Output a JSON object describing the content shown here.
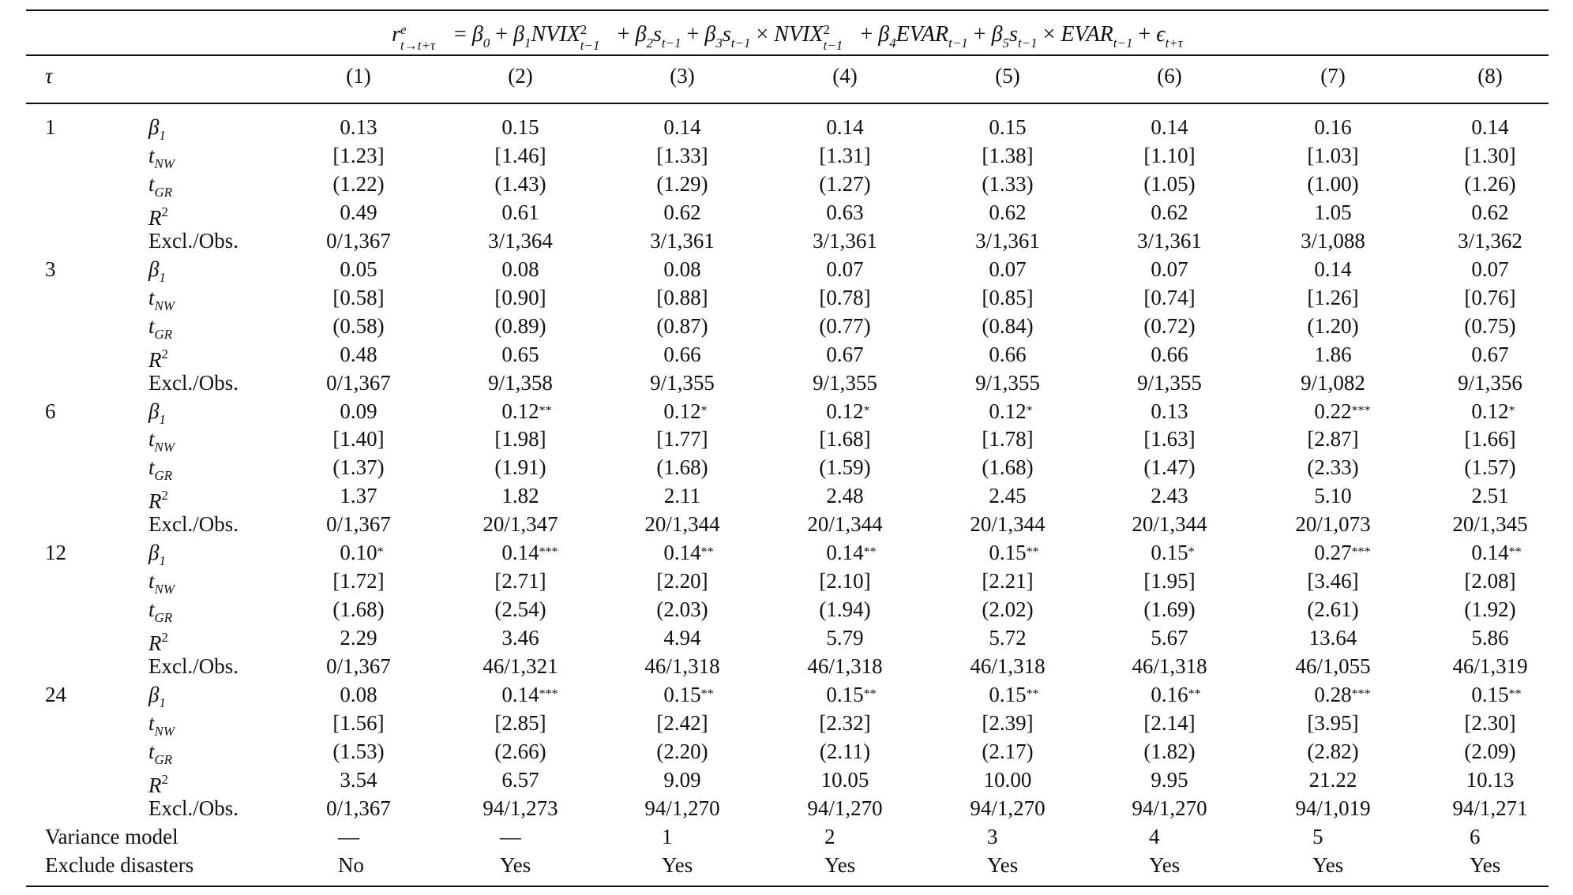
{
  "equation": {
    "lhs": "r",
    "lhs_sup": "e",
    "lhs_sub": "t→t+τ",
    "rhs_terms": [
      {
        "t": "= "
      },
      {
        "i": "β"
      },
      {
        "s": "0"
      },
      {
        "t": " + "
      },
      {
        "i": "β"
      },
      {
        "s": "1"
      },
      {
        "i": "NVIX"
      },
      {
        "st": "2",
        "sb": "t−1"
      },
      {
        "t": " + "
      },
      {
        "i": "β"
      },
      {
        "s": "2"
      },
      {
        "i": "s"
      },
      {
        "s": "t−1"
      },
      {
        "t": " + "
      },
      {
        "i": "β"
      },
      {
        "s": "3"
      },
      {
        "i": "s"
      },
      {
        "s": "t−1"
      },
      {
        "t": " × "
      },
      {
        "i": "NVIX"
      },
      {
        "st": "2",
        "sb": "t−1"
      },
      {
        "t": " + "
      },
      {
        "i": "β"
      },
      {
        "s": "4"
      },
      {
        "i": "EVAR"
      },
      {
        "s": "t−1"
      },
      {
        "t": " + "
      },
      {
        "i": "β"
      },
      {
        "s": "5"
      },
      {
        "i": "s"
      },
      {
        "s": "t−1"
      },
      {
        "t": " × "
      },
      {
        "i": "EVAR"
      },
      {
        "s": "t−1"
      },
      {
        "t": " + "
      },
      {
        "i": "ϵ"
      },
      {
        "s": "t+τ"
      }
    ]
  },
  "header": {
    "tau_label": "τ",
    "columns": [
      "(1)",
      "(2)",
      "(3)",
      "(4)",
      "(5)",
      "(6)",
      "(7)",
      "(8)"
    ]
  },
  "stat_labels": [
    {
      "base": "β",
      "sub": "1",
      "sup": ""
    },
    {
      "base": "t",
      "sub": "NW",
      "sup": ""
    },
    {
      "base": "t",
      "sub": "GR",
      "sup": ""
    },
    {
      "base": "R",
      "sub": "",
      "sup": "2"
    },
    {
      "plain": "Excl./Obs."
    }
  ],
  "blocks": [
    {
      "tau": "1",
      "rows": [
        [
          [
            "0.13",
            ""
          ],
          [
            "0.15",
            ""
          ],
          [
            "0.14",
            ""
          ],
          [
            "0.14",
            ""
          ],
          [
            "0.15",
            ""
          ],
          [
            "0.14",
            ""
          ],
          [
            "0.16",
            ""
          ],
          [
            "0.14",
            ""
          ]
        ],
        [
          [
            "[1.23]",
            ""
          ],
          [
            "[1.46]",
            ""
          ],
          [
            "[1.33]",
            ""
          ],
          [
            "[1.31]",
            ""
          ],
          [
            "[1.38]",
            ""
          ],
          [
            "[1.10]",
            ""
          ],
          [
            "[1.03]",
            ""
          ],
          [
            "[1.30]",
            ""
          ]
        ],
        [
          [
            "(1.22)",
            ""
          ],
          [
            "(1.43)",
            ""
          ],
          [
            "(1.29)",
            ""
          ],
          [
            "(1.27)",
            ""
          ],
          [
            "(1.33)",
            ""
          ],
          [
            "(1.05)",
            ""
          ],
          [
            "(1.00)",
            ""
          ],
          [
            "(1.26)",
            ""
          ]
        ],
        [
          [
            "0.49",
            ""
          ],
          [
            "0.61",
            ""
          ],
          [
            "0.62",
            ""
          ],
          [
            "0.63",
            ""
          ],
          [
            "0.62",
            ""
          ],
          [
            "0.62",
            ""
          ],
          [
            "1.05",
            ""
          ],
          [
            "0.62",
            ""
          ]
        ],
        [
          [
            "0/1,367",
            ""
          ],
          [
            "3/1,364",
            ""
          ],
          [
            "3/1,361",
            ""
          ],
          [
            "3/1,361",
            ""
          ],
          [
            "3/1,361",
            ""
          ],
          [
            "3/1,361",
            ""
          ],
          [
            "3/1,088",
            ""
          ],
          [
            "3/1,362",
            ""
          ]
        ]
      ]
    },
    {
      "tau": "3",
      "rows": [
        [
          [
            "0.05",
            ""
          ],
          [
            "0.08",
            ""
          ],
          [
            "0.08",
            ""
          ],
          [
            "0.07",
            ""
          ],
          [
            "0.07",
            ""
          ],
          [
            "0.07",
            ""
          ],
          [
            "0.14",
            ""
          ],
          [
            "0.07",
            ""
          ]
        ],
        [
          [
            "[0.58]",
            ""
          ],
          [
            "[0.90]",
            ""
          ],
          [
            "[0.88]",
            ""
          ],
          [
            "[0.78]",
            ""
          ],
          [
            "[0.85]",
            ""
          ],
          [
            "[0.74]",
            ""
          ],
          [
            "[1.26]",
            ""
          ],
          [
            "[0.76]",
            ""
          ]
        ],
        [
          [
            "(0.58)",
            ""
          ],
          [
            "(0.89)",
            ""
          ],
          [
            "(0.87)",
            ""
          ],
          [
            "(0.77)",
            ""
          ],
          [
            "(0.84)",
            ""
          ],
          [
            "(0.72)",
            ""
          ],
          [
            "(1.20)",
            ""
          ],
          [
            "(0.75)",
            ""
          ]
        ],
        [
          [
            "0.48",
            ""
          ],
          [
            "0.65",
            ""
          ],
          [
            "0.66",
            ""
          ],
          [
            "0.67",
            ""
          ],
          [
            "0.66",
            ""
          ],
          [
            "0.66",
            ""
          ],
          [
            "1.86",
            ""
          ],
          [
            "0.67",
            ""
          ]
        ],
        [
          [
            "0/1,367",
            ""
          ],
          [
            "9/1,358",
            ""
          ],
          [
            "9/1,355",
            ""
          ],
          [
            "9/1,355",
            ""
          ],
          [
            "9/1,355",
            ""
          ],
          [
            "9/1,355",
            ""
          ],
          [
            "9/1,082",
            ""
          ],
          [
            "9/1,356",
            ""
          ]
        ]
      ]
    },
    {
      "tau": "6",
      "rows": [
        [
          [
            "0.09",
            ""
          ],
          [
            "0.12",
            "**"
          ],
          [
            "0.12",
            "*"
          ],
          [
            "0.12",
            "*"
          ],
          [
            "0.12",
            "*"
          ],
          [
            "0.13",
            ""
          ],
          [
            "0.22",
            "***"
          ],
          [
            "0.12",
            "*"
          ]
        ],
        [
          [
            "[1.40]",
            ""
          ],
          [
            "[1.98]",
            ""
          ],
          [
            "[1.77]",
            ""
          ],
          [
            "[1.68]",
            ""
          ],
          [
            "[1.78]",
            ""
          ],
          [
            "[1.63]",
            ""
          ],
          [
            "[2.87]",
            ""
          ],
          [
            "[1.66]",
            ""
          ]
        ],
        [
          [
            "(1.37)",
            ""
          ],
          [
            "(1.91)",
            ""
          ],
          [
            "(1.68)",
            ""
          ],
          [
            "(1.59)",
            ""
          ],
          [
            "(1.68)",
            ""
          ],
          [
            "(1.47)",
            ""
          ],
          [
            "(2.33)",
            ""
          ],
          [
            "(1.57)",
            ""
          ]
        ],
        [
          [
            "1.37",
            ""
          ],
          [
            "1.82",
            ""
          ],
          [
            "2.11",
            ""
          ],
          [
            "2.48",
            ""
          ],
          [
            "2.45",
            ""
          ],
          [
            "2.43",
            ""
          ],
          [
            "5.10",
            ""
          ],
          [
            "2.51",
            ""
          ]
        ],
        [
          [
            "0/1,367",
            ""
          ],
          [
            "20/1,347",
            ""
          ],
          [
            "20/1,344",
            ""
          ],
          [
            "20/1,344",
            ""
          ],
          [
            "20/1,344",
            ""
          ],
          [
            "20/1,344",
            ""
          ],
          [
            "20/1,073",
            ""
          ],
          [
            "20/1,345",
            ""
          ]
        ]
      ]
    },
    {
      "tau": "12",
      "rows": [
        [
          [
            "0.10",
            "*"
          ],
          [
            "0.14",
            "***"
          ],
          [
            "0.14",
            "**"
          ],
          [
            "0.14",
            "**"
          ],
          [
            "0.15",
            "**"
          ],
          [
            "0.15",
            "*"
          ],
          [
            "0.27",
            "***"
          ],
          [
            "0.14",
            "**"
          ]
        ],
        [
          [
            "[1.72]",
            ""
          ],
          [
            "[2.71]",
            ""
          ],
          [
            "[2.20]",
            ""
          ],
          [
            "[2.10]",
            ""
          ],
          [
            "[2.21]",
            ""
          ],
          [
            "[1.95]",
            ""
          ],
          [
            "[3.46]",
            ""
          ],
          [
            "[2.08]",
            ""
          ]
        ],
        [
          [
            "(1.68)",
            ""
          ],
          [
            "(2.54)",
            ""
          ],
          [
            "(2.03)",
            ""
          ],
          [
            "(1.94)",
            ""
          ],
          [
            "(2.02)",
            ""
          ],
          [
            "(1.69)",
            ""
          ],
          [
            "(2.61)",
            ""
          ],
          [
            "(1.92)",
            ""
          ]
        ],
        [
          [
            "2.29",
            ""
          ],
          [
            "3.46",
            ""
          ],
          [
            "4.94",
            ""
          ],
          [
            "5.79",
            ""
          ],
          [
            "5.72",
            ""
          ],
          [
            "5.67",
            ""
          ],
          [
            "13.64",
            ""
          ],
          [
            "5.86",
            ""
          ]
        ],
        [
          [
            "0/1,367",
            ""
          ],
          [
            "46/1,321",
            ""
          ],
          [
            "46/1,318",
            ""
          ],
          [
            "46/1,318",
            ""
          ],
          [
            "46/1,318",
            ""
          ],
          [
            "46/1,318",
            ""
          ],
          [
            "46/1,055",
            ""
          ],
          [
            "46/1,319",
            ""
          ]
        ]
      ]
    },
    {
      "tau": "24",
      "rows": [
        [
          [
            "0.08",
            ""
          ],
          [
            "0.14",
            "***"
          ],
          [
            "0.15",
            "**"
          ],
          [
            "0.15",
            "**"
          ],
          [
            "0.15",
            "**"
          ],
          [
            "0.16",
            "**"
          ],
          [
            "0.28",
            "***"
          ],
          [
            "0.15",
            "**"
          ]
        ],
        [
          [
            "[1.56]",
            ""
          ],
          [
            "[2.85]",
            ""
          ],
          [
            "[2.42]",
            ""
          ],
          [
            "[2.32]",
            ""
          ],
          [
            "[2.39]",
            ""
          ],
          [
            "[2.14]",
            ""
          ],
          [
            "[3.95]",
            ""
          ],
          [
            "[2.30]",
            ""
          ]
        ],
        [
          [
            "(1.53)",
            ""
          ],
          [
            "(2.66)",
            ""
          ],
          [
            "(2.20)",
            ""
          ],
          [
            "(2.11)",
            ""
          ],
          [
            "(2.17)",
            ""
          ],
          [
            "(1.82)",
            ""
          ],
          [
            "(2.82)",
            ""
          ],
          [
            "(2.09)",
            ""
          ]
        ],
        [
          [
            "3.54",
            ""
          ],
          [
            "6.57",
            ""
          ],
          [
            "9.09",
            ""
          ],
          [
            "10.05",
            ""
          ],
          [
            "10.00",
            ""
          ],
          [
            "9.95",
            ""
          ],
          [
            "21.22",
            ""
          ],
          [
            "10.13",
            ""
          ]
        ],
        [
          [
            "0/1,367",
            ""
          ],
          [
            "94/1,273",
            ""
          ],
          [
            "94/1,270",
            ""
          ],
          [
            "94/1,270",
            ""
          ],
          [
            "94/1,270",
            ""
          ],
          [
            "94/1,270",
            ""
          ],
          [
            "94/1,019",
            ""
          ],
          [
            "94/1,271",
            ""
          ]
        ]
      ]
    }
  ],
  "footer": [
    {
      "label": "Variance model",
      "values": [
        "—",
        "—",
        "1",
        "2",
        "3",
        "4",
        "5",
        "6"
      ]
    },
    {
      "label": "Exclude disasters",
      "values": [
        "No",
        "Yes",
        "Yes",
        "Yes",
        "Yes",
        "Yes",
        "Yes",
        "Yes"
      ]
    }
  ]
}
